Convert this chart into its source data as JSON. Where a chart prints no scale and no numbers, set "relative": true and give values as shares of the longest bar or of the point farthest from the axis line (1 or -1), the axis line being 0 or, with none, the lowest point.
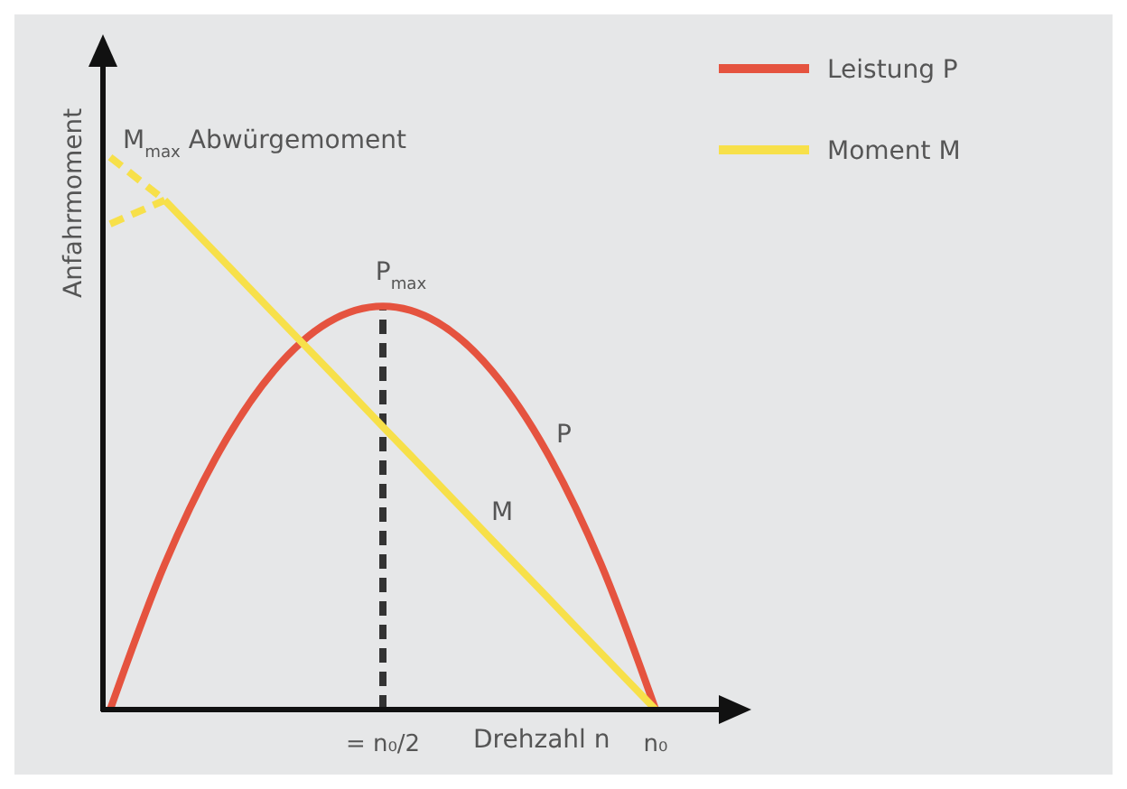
{
  "chart_data": {
    "type": "line",
    "relative": true,
    "xlabel": "Drehzahl n",
    "ylabel": "Anfahrmoment",
    "categories": [
      null,
      null,
      null,
      null,
      null,
      "= n₀/2",
      null,
      null,
      null,
      null,
      "n₀"
    ],
    "tick_labels": "x",
    "legend": "top right",
    "grid": false,
    "marker": "none",
    "series": [
      {
        "name": "Leistung P",
        "color": "#e5533f",
        "values": [
          0,
          0.263,
          0.467,
          0.613,
          0.701,
          0.73,
          0.701,
          0.613,
          0.467,
          0.263,
          0
        ]
      },
      {
        "name": "Moment M",
        "color": "#f7e04a",
        "values": [
          null,
          0.922,
          0.82,
          0.717,
          0.615,
          0.512,
          0.41,
          0.307,
          0.205,
          0.102,
          0
        ]
      },
      {
        "color": "#f7e04a",
        "line_style": "dashed",
        "values": [
          1,
          0.922,
          null,
          null,
          null,
          null,
          null,
          null,
          null,
          null,
          null
        ]
      },
      {
        "color": "#f7e04a",
        "line_style": "dashed",
        "values": [
          0.879,
          0.922,
          null,
          null,
          null,
          null,
          null,
          null,
          null,
          null,
          null
        ]
      }
    ],
    "ref_lines": [
      {
        "axis": "x",
        "value": "= n₀/2",
        "color": "#333333",
        "line_style": "dashed"
      }
    ],
    "annotations": [
      "M$_{max}$  Abwürgemoment",
      "P$_{max}$",
      "P",
      "M"
    ]
  }
}
